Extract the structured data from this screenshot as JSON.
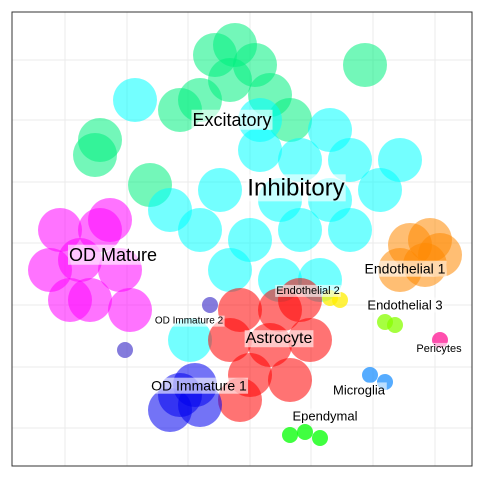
{
  "chart_data": {
    "type": "scatter",
    "xlim": [
      12,
      472
    ],
    "ylim": [
      14,
      468
    ],
    "series": [
      {
        "name": "Excitatory",
        "color": "#00f080",
        "x": [
          235,
          255,
          215,
          230,
          200,
          270,
          180,
          100,
          95,
          365,
          150,
          290
        ],
        "y": [
          435,
          415,
          425,
          400,
          380,
          385,
          370,
          340,
          325,
          415,
          295,
          360
        ]
      },
      {
        "name": "Inhibitory",
        "color": "#00ffff",
        "x": [
          260,
          300,
          350,
          220,
          280,
          330,
          380,
          200,
          250,
          300,
          350,
          230,
          280,
          320,
          170,
          135,
          400,
          190,
          260,
          330
        ],
        "y": [
          330,
          320,
          320,
          290,
          280,
          280,
          290,
          250,
          240,
          250,
          250,
          210,
          200,
          200,
          270,
          380,
          320,
          140,
          360,
          350
        ]
      },
      {
        "name": "OD Mature",
        "color": "#ff00ff",
        "x": [
          60,
          100,
          80,
          50,
          120,
          90,
          70,
          130,
          110
        ],
        "y": [
          250,
          250,
          220,
          210,
          210,
          180,
          180,
          170,
          260
        ]
      },
      {
        "name": "OD Immature 2",
        "color": "#5b4fd0",
        "x": [
          125,
          210
        ],
        "y": [
          130,
          175
        ]
      },
      {
        "name": "Astrocyte",
        "color": "#ff0000",
        "x": [
          240,
          280,
          230,
          270,
          310,
          250,
          290,
          240,
          300
        ],
        "y": [
          170,
          170,
          140,
          135,
          140,
          105,
          100,
          80,
          180
        ]
      },
      {
        "name": "OD Immature 1",
        "color": "#0000ee",
        "x": [
          180,
          200,
          170,
          195
        ],
        "y": [
          85,
          75,
          70,
          95
        ]
      },
      {
        "name": "Endothelial 2",
        "color": "#ffee00",
        "x": [
          340,
          330
        ],
        "y": [
          180,
          182
        ]
      },
      {
        "name": "Endothelial 1",
        "color": "#ff8800",
        "x": [
          410,
          430,
          425,
          400,
          440
        ],
        "y": [
          235,
          240,
          215,
          210,
          225
        ]
      },
      {
        "name": "Endothelial 3",
        "color": "#88ff00",
        "x": [
          385,
          395
        ],
        "y": [
          158,
          155
        ]
      },
      {
        "name": "Pericytes",
        "color": "#ff1493",
        "x": [
          440
        ],
        "y": [
          140
        ]
      },
      {
        "name": "Microglia",
        "color": "#1e90ff",
        "x": [
          370,
          385
        ],
        "y": [
          105,
          98
        ]
      },
      {
        "name": "Ependymal",
        "color": "#00ff00",
        "x": [
          305,
          320,
          290
        ],
        "y": [
          48,
          42,
          45
        ]
      }
    ]
  }
}
